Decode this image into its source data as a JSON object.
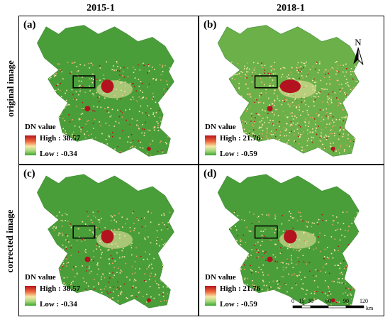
{
  "columns": [
    "2015-1",
    "2018-1"
  ],
  "rows": [
    "original image",
    "corrected image"
  ],
  "panels": [
    {
      "label": "(a)",
      "legend_title": "DN value",
      "high": "High : 38.57",
      "low": "Low : -0.34"
    },
    {
      "label": "(b)",
      "legend_title": "DN value",
      "high": "High : 21.76",
      "low": "Low : -0.59"
    },
    {
      "label": "(c)",
      "legend_title": "DN value",
      "high": "High : 38.57",
      "low": "Low : -0.34"
    },
    {
      "label": "(d)",
      "legend_title": "DN value",
      "high": "High : 21.76",
      "low": "Low : -0.59"
    }
  ],
  "north_arrow": {
    "letter": "N",
    "icon": "north-arrow-icon"
  },
  "scale_bar": {
    "ticks": [
      "0",
      "15",
      "30",
      "60",
      "90",
      "120"
    ],
    "unit": "km"
  },
  "colors": {
    "high": "#b3121f",
    "mid": "#f6e8a8",
    "low": "#3fa534",
    "base_green": "#4a9e3a",
    "base_green_b": "#6cb04a"
  }
}
